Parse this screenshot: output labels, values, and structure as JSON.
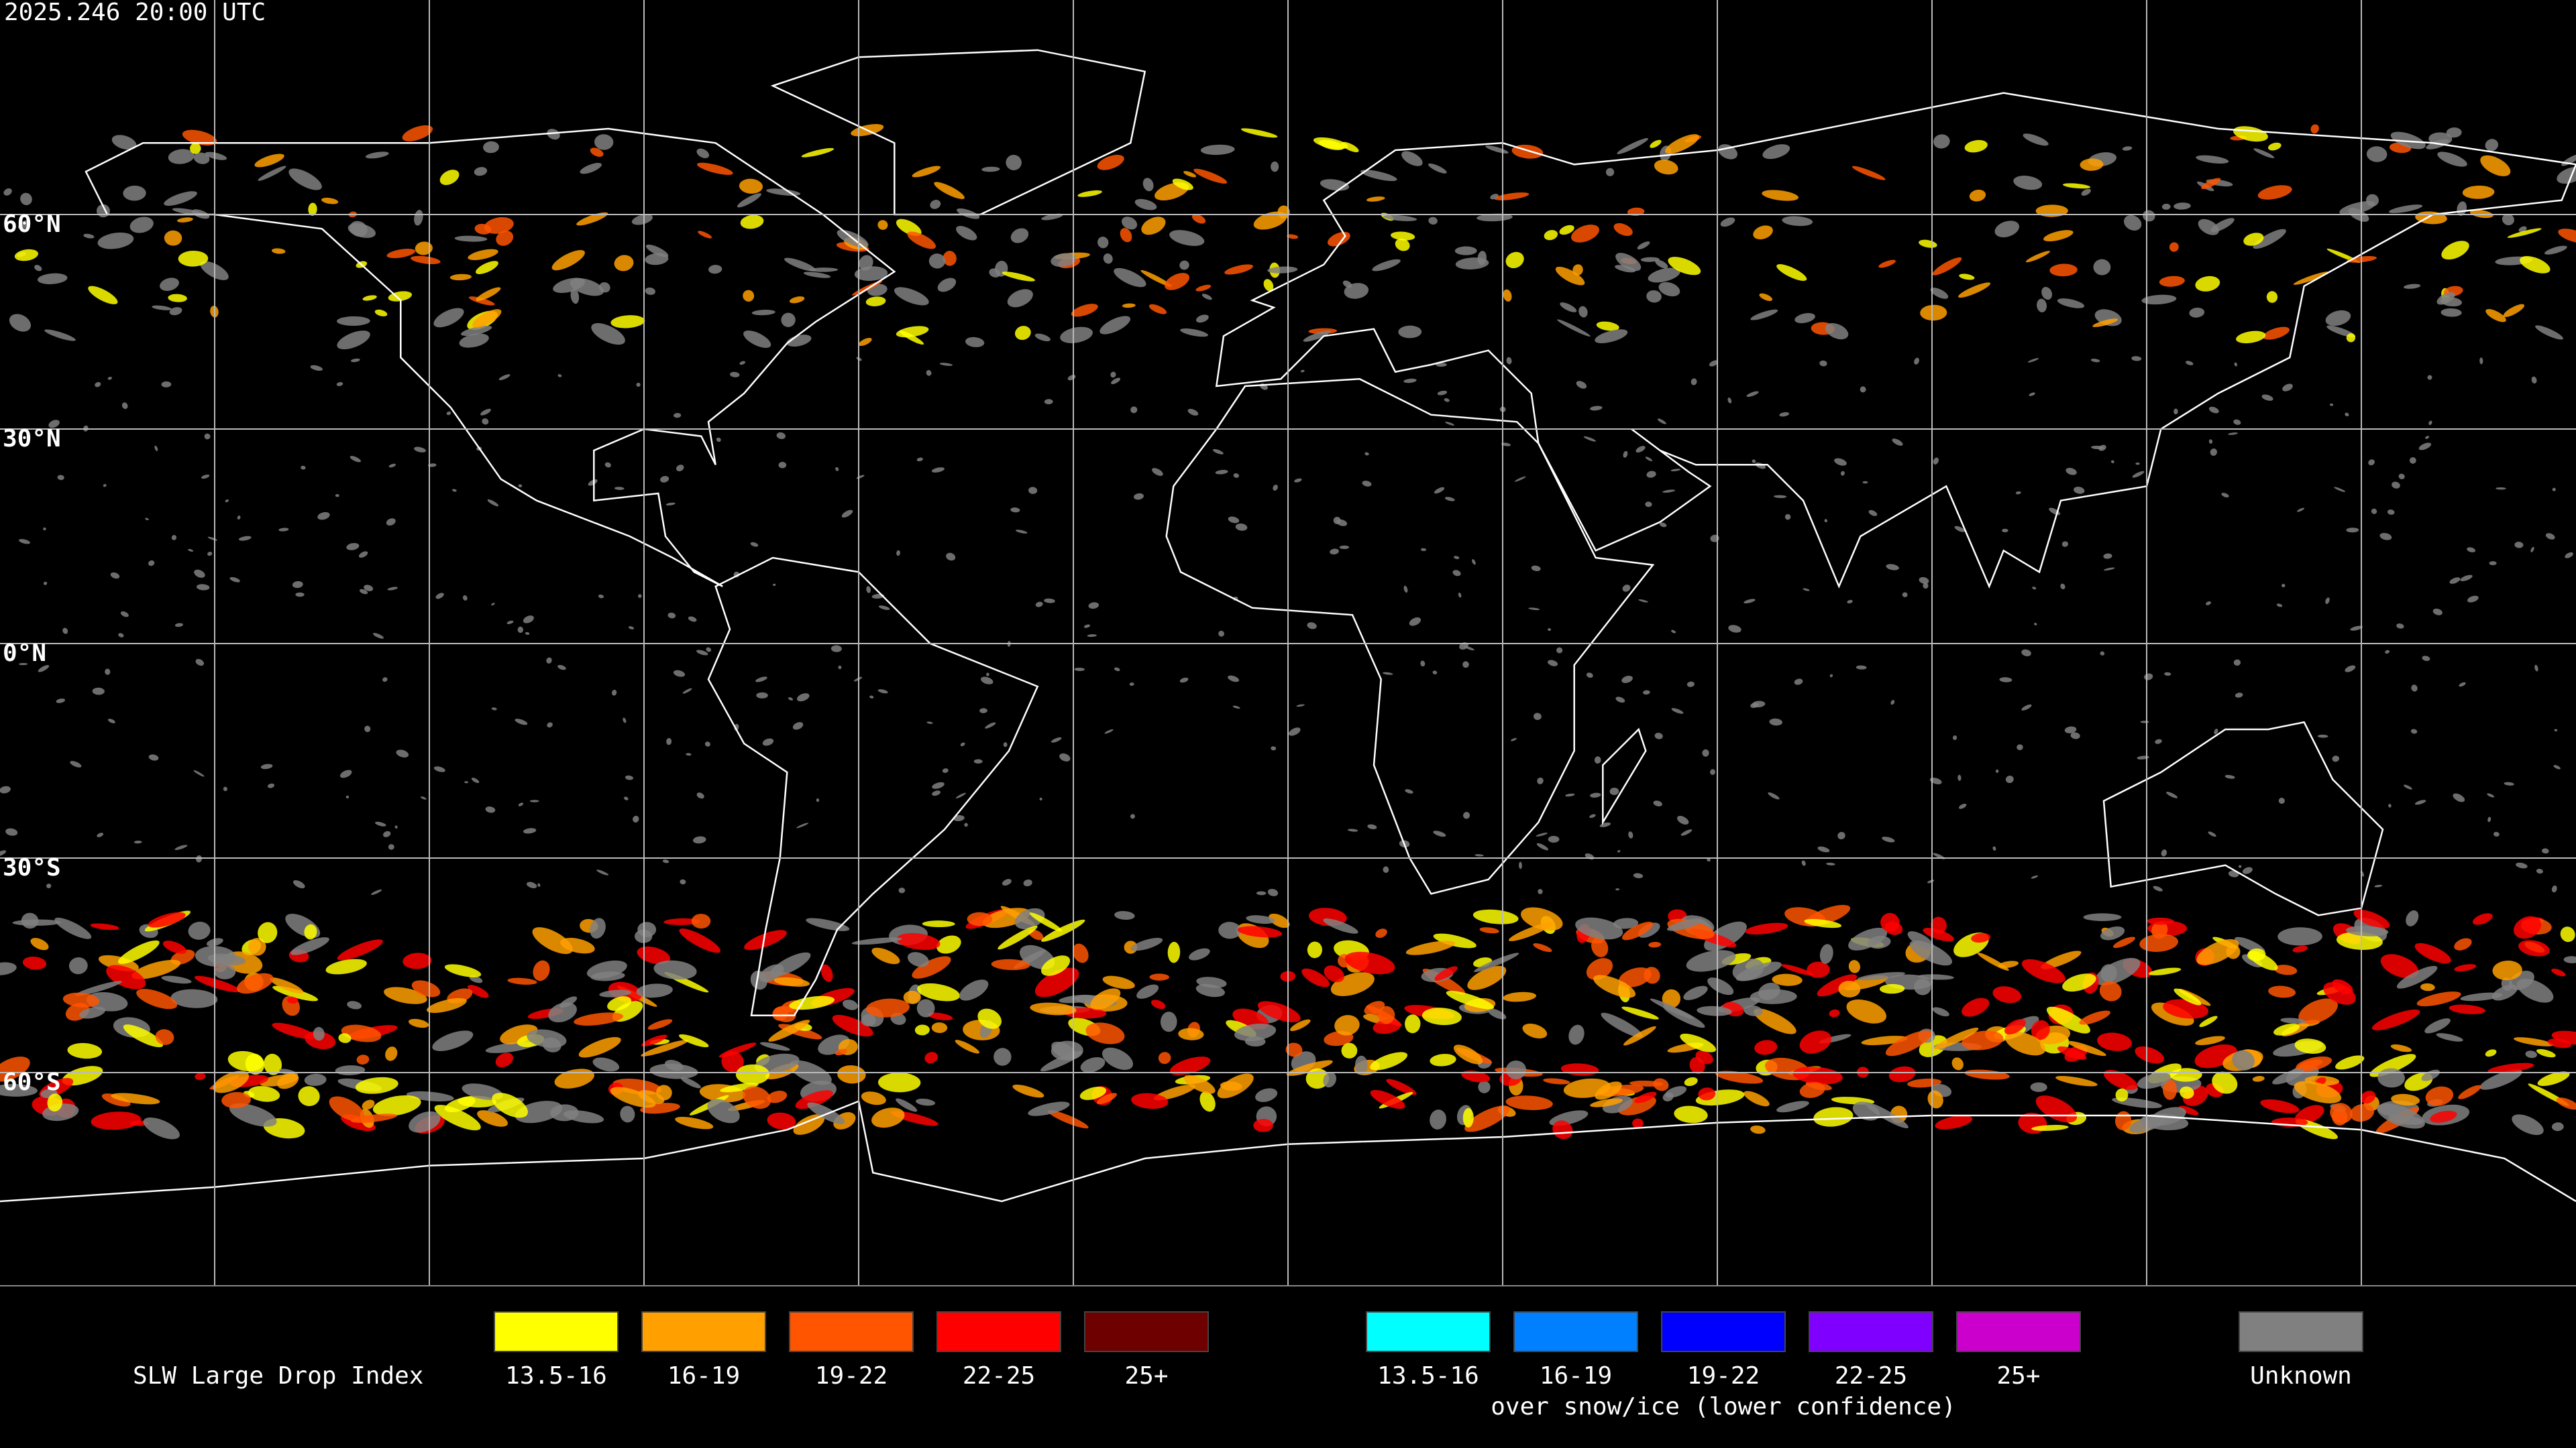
{
  "header": {
    "timestamp": "2025.246 20:00 UTC"
  },
  "latitude_labels": [
    "60°N",
    "30°N",
    "0°N",
    "30°S",
    "60°S"
  ],
  "legend": {
    "title": "SLW Large Drop Index",
    "groups": [
      {
        "items": [
          {
            "label": "13.5-16",
            "color": "#ffff00"
          },
          {
            "label": "16-19",
            "color": "#ffa000"
          },
          {
            "label": "19-22",
            "color": "#ff5500"
          },
          {
            "label": "22-25",
            "color": "#ff0000"
          },
          {
            "label": "25+",
            "color": "#6e0000"
          }
        ]
      },
      {
        "items": [
          {
            "label": "13.5-16",
            "color": "#00ffff"
          },
          {
            "label": "16-19",
            "color": "#0080ff"
          },
          {
            "label": "19-22",
            "color": "#0000ff"
          },
          {
            "label": "22-25",
            "color": "#8000ff"
          },
          {
            "label": "25+",
            "color": "#cc00cc"
          }
        ],
        "caption": "over snow/ice (lower confidence)"
      }
    ],
    "unknown": {
      "label": "Unknown",
      "color": "#808080"
    }
  }
}
